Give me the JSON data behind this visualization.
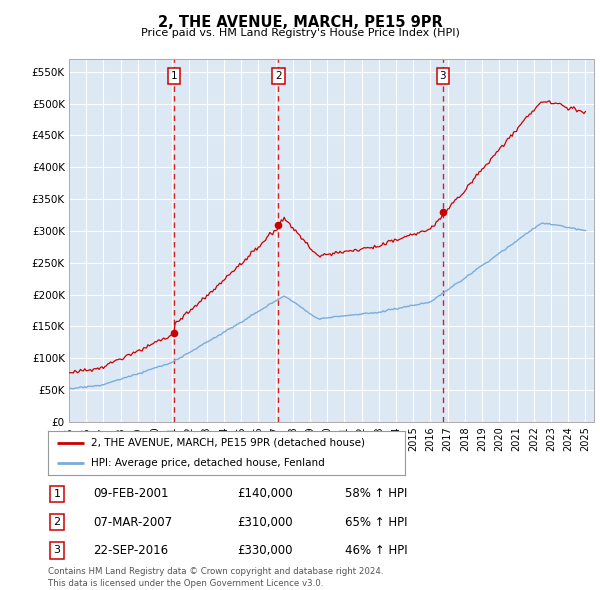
{
  "title": "2, THE AVENUE, MARCH, PE15 9PR",
  "subtitle": "Price paid vs. HM Land Registry's House Price Index (HPI)",
  "ylabel_ticks": [
    "£0",
    "£50K",
    "£100K",
    "£150K",
    "£200K",
    "£250K",
    "£300K",
    "£350K",
    "£400K",
    "£450K",
    "£500K",
    "£550K"
  ],
  "ytick_values": [
    0,
    50000,
    100000,
    150000,
    200000,
    250000,
    300000,
    350000,
    400000,
    450000,
    500000,
    550000
  ],
  "ylim": [
    0,
    570000
  ],
  "xlim_start": 1995.0,
  "xlim_end": 2025.5,
  "sale_dates": [
    2001.1,
    2007.17,
    2016.72
  ],
  "sale_prices": [
    140000,
    310000,
    330000
  ],
  "sale_labels": [
    "1",
    "2",
    "3"
  ],
  "sale_info": [
    {
      "label": "1",
      "date": "09-FEB-2001",
      "price": "£140,000",
      "hpi": "58% ↑ HPI"
    },
    {
      "label": "2",
      "date": "07-MAR-2007",
      "price": "£310,000",
      "hpi": "65% ↑ HPI"
    },
    {
      "label": "3",
      "date": "22-SEP-2016",
      "price": "£330,000",
      "hpi": "46% ↑ HPI"
    }
  ],
  "legend_line1": "2, THE AVENUE, MARCH, PE15 9PR (detached house)",
  "legend_line2": "HPI: Average price, detached house, Fenland",
  "footer": "Contains HM Land Registry data © Crown copyright and database right 2024.\nThis data is licensed under the Open Government Licence v3.0.",
  "line_color_red": "#cc0000",
  "line_color_blue": "#7aaddb",
  "dashed_line_color": "#cc0000",
  "background_color": "#ffffff",
  "chart_bg_color": "#dce9f5",
  "grid_color": "#ffffff"
}
